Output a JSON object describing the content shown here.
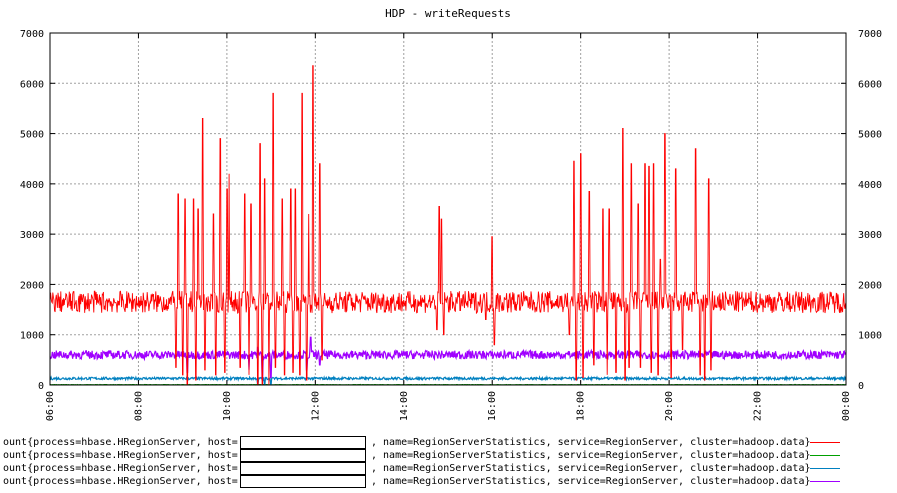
{
  "chart_data": {
    "type": "line",
    "title": "HDP - writeRequests",
    "xlabel": "",
    "ylabel": "",
    "x_ticks": [
      "06:00",
      "08:00",
      "10:00",
      "12:00",
      "14:00",
      "16:00",
      "18:00",
      "20:00",
      "22:00",
      "00:00"
    ],
    "x_range_hours": [
      6,
      24
    ],
    "y_ticks": [
      0,
      1000,
      2000,
      3000,
      4000,
      5000,
      6000,
      7000
    ],
    "ylim": [
      0,
      7000
    ],
    "grid": true,
    "right_axis": true,
    "legend_placement": "bottom",
    "series": [
      {
        "prefix": "ount{process=hbase.HRegionServer, host=",
        "suffix": ", name=RegionServerStatistics, service=RegionServer, cluster=hadoop.data}",
        "color": "#ff0000",
        "baseline": 1650,
        "spread": 220,
        "spikes": [
          [
            8.9,
            3800
          ],
          [
            9.05,
            3700
          ],
          [
            9.25,
            3700
          ],
          [
            9.35,
            3500
          ],
          [
            9.45,
            5300
          ],
          [
            9.7,
            3400
          ],
          [
            9.85,
            4900
          ],
          [
            10.0,
            3900
          ],
          [
            10.05,
            4200
          ],
          [
            10.4,
            3800
          ],
          [
            10.55,
            3600
          ],
          [
            10.75,
            4800
          ],
          [
            10.85,
            4100
          ],
          [
            11.05,
            5800
          ],
          [
            11.25,
            3700
          ],
          [
            11.45,
            3900
          ],
          [
            11.55,
            3900
          ],
          [
            11.7,
            5800
          ],
          [
            11.85,
            3400
          ],
          [
            11.95,
            6350
          ],
          [
            12.1,
            4400
          ],
          [
            14.8,
            3550
          ],
          [
            14.85,
            3300
          ],
          [
            15.85,
            3600
          ],
          [
            16.0,
            2950
          ],
          [
            17.85,
            4450
          ],
          [
            18.0,
            4600
          ],
          [
            18.2,
            3850
          ],
          [
            18.5,
            3500
          ],
          [
            18.65,
            3500
          ],
          [
            18.8,
            3900
          ],
          [
            18.95,
            5100
          ],
          [
            19.15,
            4400
          ],
          [
            19.3,
            3600
          ],
          [
            19.45,
            4400
          ],
          [
            19.55,
            4350
          ],
          [
            19.65,
            4400
          ],
          [
            19.8,
            2500
          ],
          [
            19.9,
            5000
          ],
          [
            20.15,
            4300
          ],
          [
            20.6,
            4700
          ],
          [
            20.7,
            4500
          ],
          [
            20.9,
            4100
          ]
        ],
        "dips": [
          [
            8.85,
            350
          ],
          [
            9.0,
            200
          ],
          [
            9.1,
            0
          ],
          [
            9.3,
            100
          ],
          [
            9.5,
            300
          ],
          [
            9.75,
            200
          ],
          [
            9.95,
            250
          ],
          [
            10.3,
            350
          ],
          [
            10.5,
            200
          ],
          [
            10.7,
            0
          ],
          [
            10.8,
            0
          ],
          [
            10.95,
            0
          ],
          [
            11.1,
            350
          ],
          [
            11.3,
            200
          ],
          [
            11.5,
            250
          ],
          [
            11.65,
            200
          ],
          [
            11.8,
            100
          ],
          [
            12.15,
            500
          ],
          [
            14.75,
            1100
          ],
          [
            14.9,
            1000
          ],
          [
            15.85,
            1300
          ],
          [
            16.05,
            800
          ],
          [
            17.75,
            1000
          ],
          [
            17.9,
            100
          ],
          [
            18.05,
            150
          ],
          [
            18.3,
            400
          ],
          [
            18.6,
            200
          ],
          [
            18.8,
            250
          ],
          [
            19.0,
            100
          ],
          [
            19.1,
            350
          ],
          [
            19.35,
            350
          ],
          [
            19.6,
            250
          ],
          [
            19.75,
            200
          ],
          [
            20.05,
            150
          ],
          [
            20.3,
            700
          ],
          [
            20.7,
            200
          ],
          [
            20.8,
            100
          ],
          [
            20.95,
            300
          ]
        ]
      },
      {
        "prefix": "ount{process=hbase.HRegionServer, host=",
        "suffix": ", name=RegionServerStatistics, service=RegionServer, cluster=hadoop.data}",
        "color": "#00a000",
        "baseline": 5,
        "spread": 4,
        "spikes": [],
        "dips": []
      },
      {
        "prefix": "ount{process=hbase.HRegionServer, host=",
        "suffix": ", name=RegionServerStatistics, service=RegionServer, cluster=hadoop.data}",
        "color": "#0080c0",
        "baseline": 130,
        "spread": 25,
        "spikes": [],
        "dips": [
          [
            10.7,
            20
          ],
          [
            10.85,
            10
          ],
          [
            11.0,
            20
          ]
        ]
      },
      {
        "prefix": "ount{process=hbase.HRegionServer, host=",
        "suffix": ", name=RegionServerStatistics, service=RegionServer, cluster=hadoop.data}",
        "color": "#a000ff",
        "baseline": 600,
        "spread": 85,
        "spikes": [
          [
            10.7,
            750
          ],
          [
            11.9,
            950
          ]
        ],
        "dips": [
          [
            9.1,
            250
          ],
          [
            10.5,
            300
          ],
          [
            10.8,
            100
          ],
          [
            11.0,
            150
          ],
          [
            11.8,
            300
          ],
          [
            12.1,
            400
          ]
        ]
      }
    ]
  }
}
